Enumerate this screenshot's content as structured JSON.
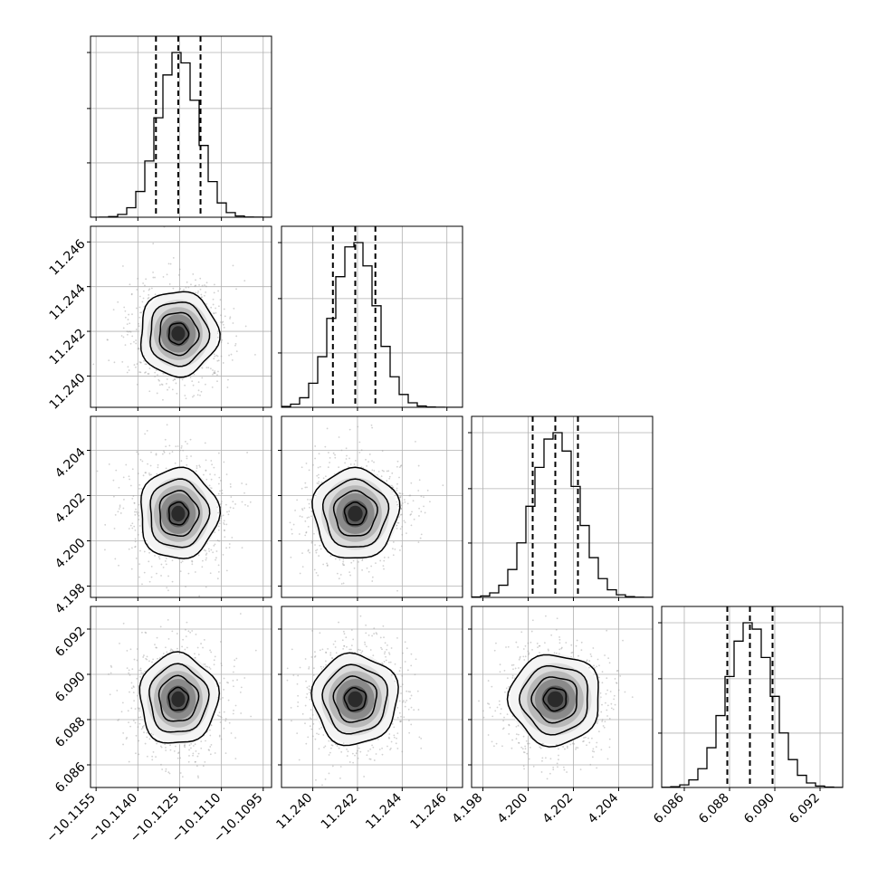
{
  "chart_data": {
    "type": "corner",
    "grid": true,
    "parameters": [
      {
        "mean": -10.11255,
        "sd": 0.0007,
        "range": [
          -10.1157,
          -10.1092
        ],
        "ticks": [
          -10.1155,
          -10.114,
          -10.1125,
          -10.111,
          -10.1095
        ],
        "tick_labels": [
          "−10.1155",
          "−10.1140",
          "−10.1125",
          "−10.1110",
          "−10.1095"
        ],
        "quantiles": [
          -10.11335,
          -10.11255,
          -10.11175
        ]
      },
      {
        "mean": 11.2419,
        "sd": 0.00095,
        "range": [
          11.2386,
          11.2467
        ],
        "ticks": [
          11.24,
          11.242,
          11.244,
          11.246
        ],
        "tick_labels": [
          "11.240",
          "11.242",
          "11.244",
          "11.246"
        ],
        "quantiles": [
          11.2409,
          11.2419,
          11.2428
        ]
      },
      {
        "mean": 4.2012,
        "sd": 0.001,
        "range": [
          4.1975,
          4.2055
        ],
        "ticks": [
          4.198,
          4.2,
          4.202,
          4.204
        ],
        "tick_labels": [
          "4.198",
          "4.200",
          "4.202",
          "4.204"
        ],
        "quantiles": [
          4.2002,
          4.2012,
          4.2022
        ]
      },
      {
        "mean": 6.0889,
        "sd": 0.001,
        "range": [
          6.085,
          6.093
        ],
        "ticks": [
          6.086,
          6.088,
          6.09,
          6.092
        ],
        "tick_labels": [
          "6.086",
          "6.088",
          "6.090",
          "6.092"
        ],
        "quantiles": [
          6.0879,
          6.0889,
          6.0899
        ]
      }
    ],
    "histogram_bins": 20,
    "contour_levels_sigma": [
      0.5,
      1.0,
      1.5,
      2.0
    ]
  }
}
